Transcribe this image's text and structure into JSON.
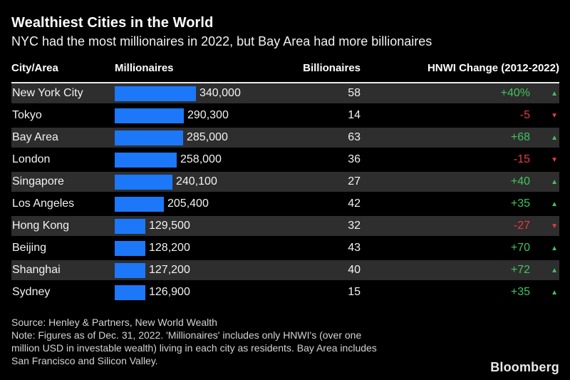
{
  "chart_data": {
    "type": "bar",
    "orientation": "horizontal",
    "title": "Wealthiest Cities in the World",
    "subtitle": "NYC had the most millionaires in 2022, but Bay Area had more billionaires",
    "categories": [
      "New York City",
      "Tokyo",
      "Bay Area",
      "London",
      "Singapore",
      "Los Angeles",
      "Hong Kong",
      "Beijing",
      "Shanghai",
      "Sydney"
    ],
    "series": [
      {
        "name": "Millionaires",
        "values": [
          340000,
          290300,
          285000,
          258000,
          240100,
          205400,
          129500,
          128200,
          127200,
          126900
        ],
        "labels": [
          "340,000",
          "290,300",
          "285,000",
          "258,000",
          "240,100",
          "205,400",
          "129,500",
          "128,200",
          "127,200",
          "126,900"
        ]
      },
      {
        "name": "Billionaires",
        "values": [
          58,
          14,
          63,
          36,
          27,
          42,
          32,
          43,
          40,
          15
        ]
      },
      {
        "name": "HNWI Change (2012-2022)",
        "labels": [
          "+40%",
          "-5",
          "+68",
          "-15",
          "+40",
          "+35",
          "-27",
          "+70",
          "+72",
          "+35"
        ],
        "directions": [
          "up",
          "down",
          "up",
          "down",
          "up",
          "up",
          "down",
          "up",
          "up",
          "up"
        ]
      }
    ],
    "xlim": [
      0,
      340000
    ],
    "grid": false,
    "legend": "none"
  },
  "header": {
    "col_city": "City/Area",
    "col_millionaires": "Millionaires",
    "col_billionaires": "Billionaires",
    "col_hnwi": "HNWI Change (2012-2022)"
  },
  "icons": {
    "up_arrow": "▲",
    "down_arrow": "▼"
  },
  "colors": {
    "background": "#000000",
    "bar": "#1c78f8",
    "up": "#3fc45f",
    "down": "#ea3a41",
    "row_stripe": "#2e2e2e",
    "text": "#f2f2f2"
  },
  "footer": {
    "source": "Source: Henley & Partners, New World Wealth",
    "note_lines": [
      "Note: Figures as of Dec. 31, 2022. 'Millionaires' includes only HNWI's (over one",
      "million USD in investable wealth) living in each city as residents. Bay Area includes",
      "San Francisco and Silicon Valley."
    ],
    "brand": "Bloomberg"
  }
}
